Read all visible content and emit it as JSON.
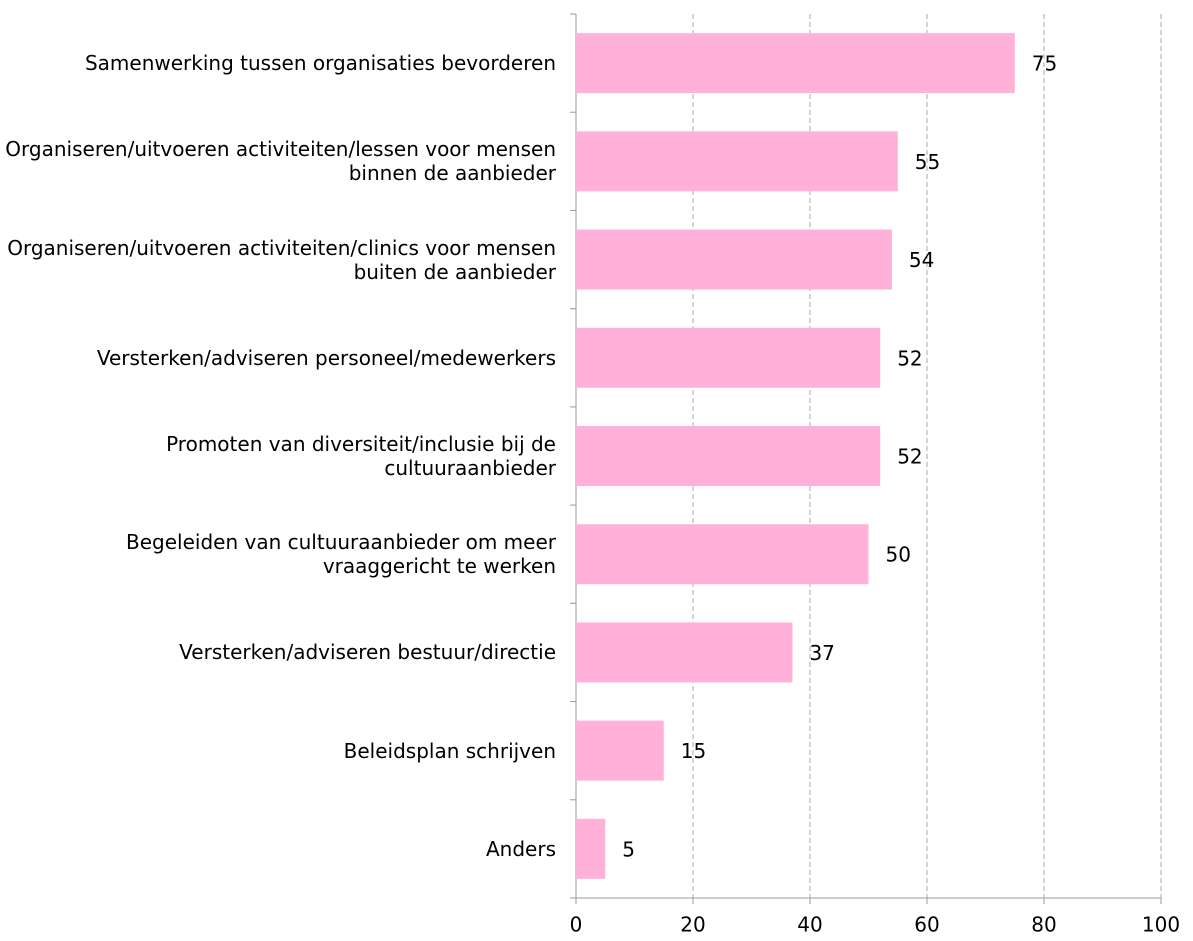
{
  "chart_data": {
    "type": "bar",
    "orientation": "horizontal",
    "categories": [
      "Samenwerking tussen organisaties bevorderen",
      "Organiseren/uitvoeren activiteiten/lessen voor mensen binnen de aanbieder",
      "Organiseren/uitvoeren activiteiten/clinics voor mensen buiten de aanbieder",
      "Versterken/adviseren personeel/medewerkers",
      "Promoten van diversiteit/inclusie bij de cultuuraanbieder",
      "Begeleiden van cultuuraanbieder om meer vraaggericht te werken",
      "Versterken/adviseren bestuur/directie",
      "Beleidsplan schrijven",
      "Anders"
    ],
    "values": [
      75,
      55,
      54,
      52,
      52,
      50,
      37,
      15,
      5
    ],
    "color": "#ffb1da",
    "xlim": [
      0,
      100
    ],
    "xticks": [
      0,
      20,
      40,
      60,
      80,
      100
    ],
    "grid": true
  }
}
